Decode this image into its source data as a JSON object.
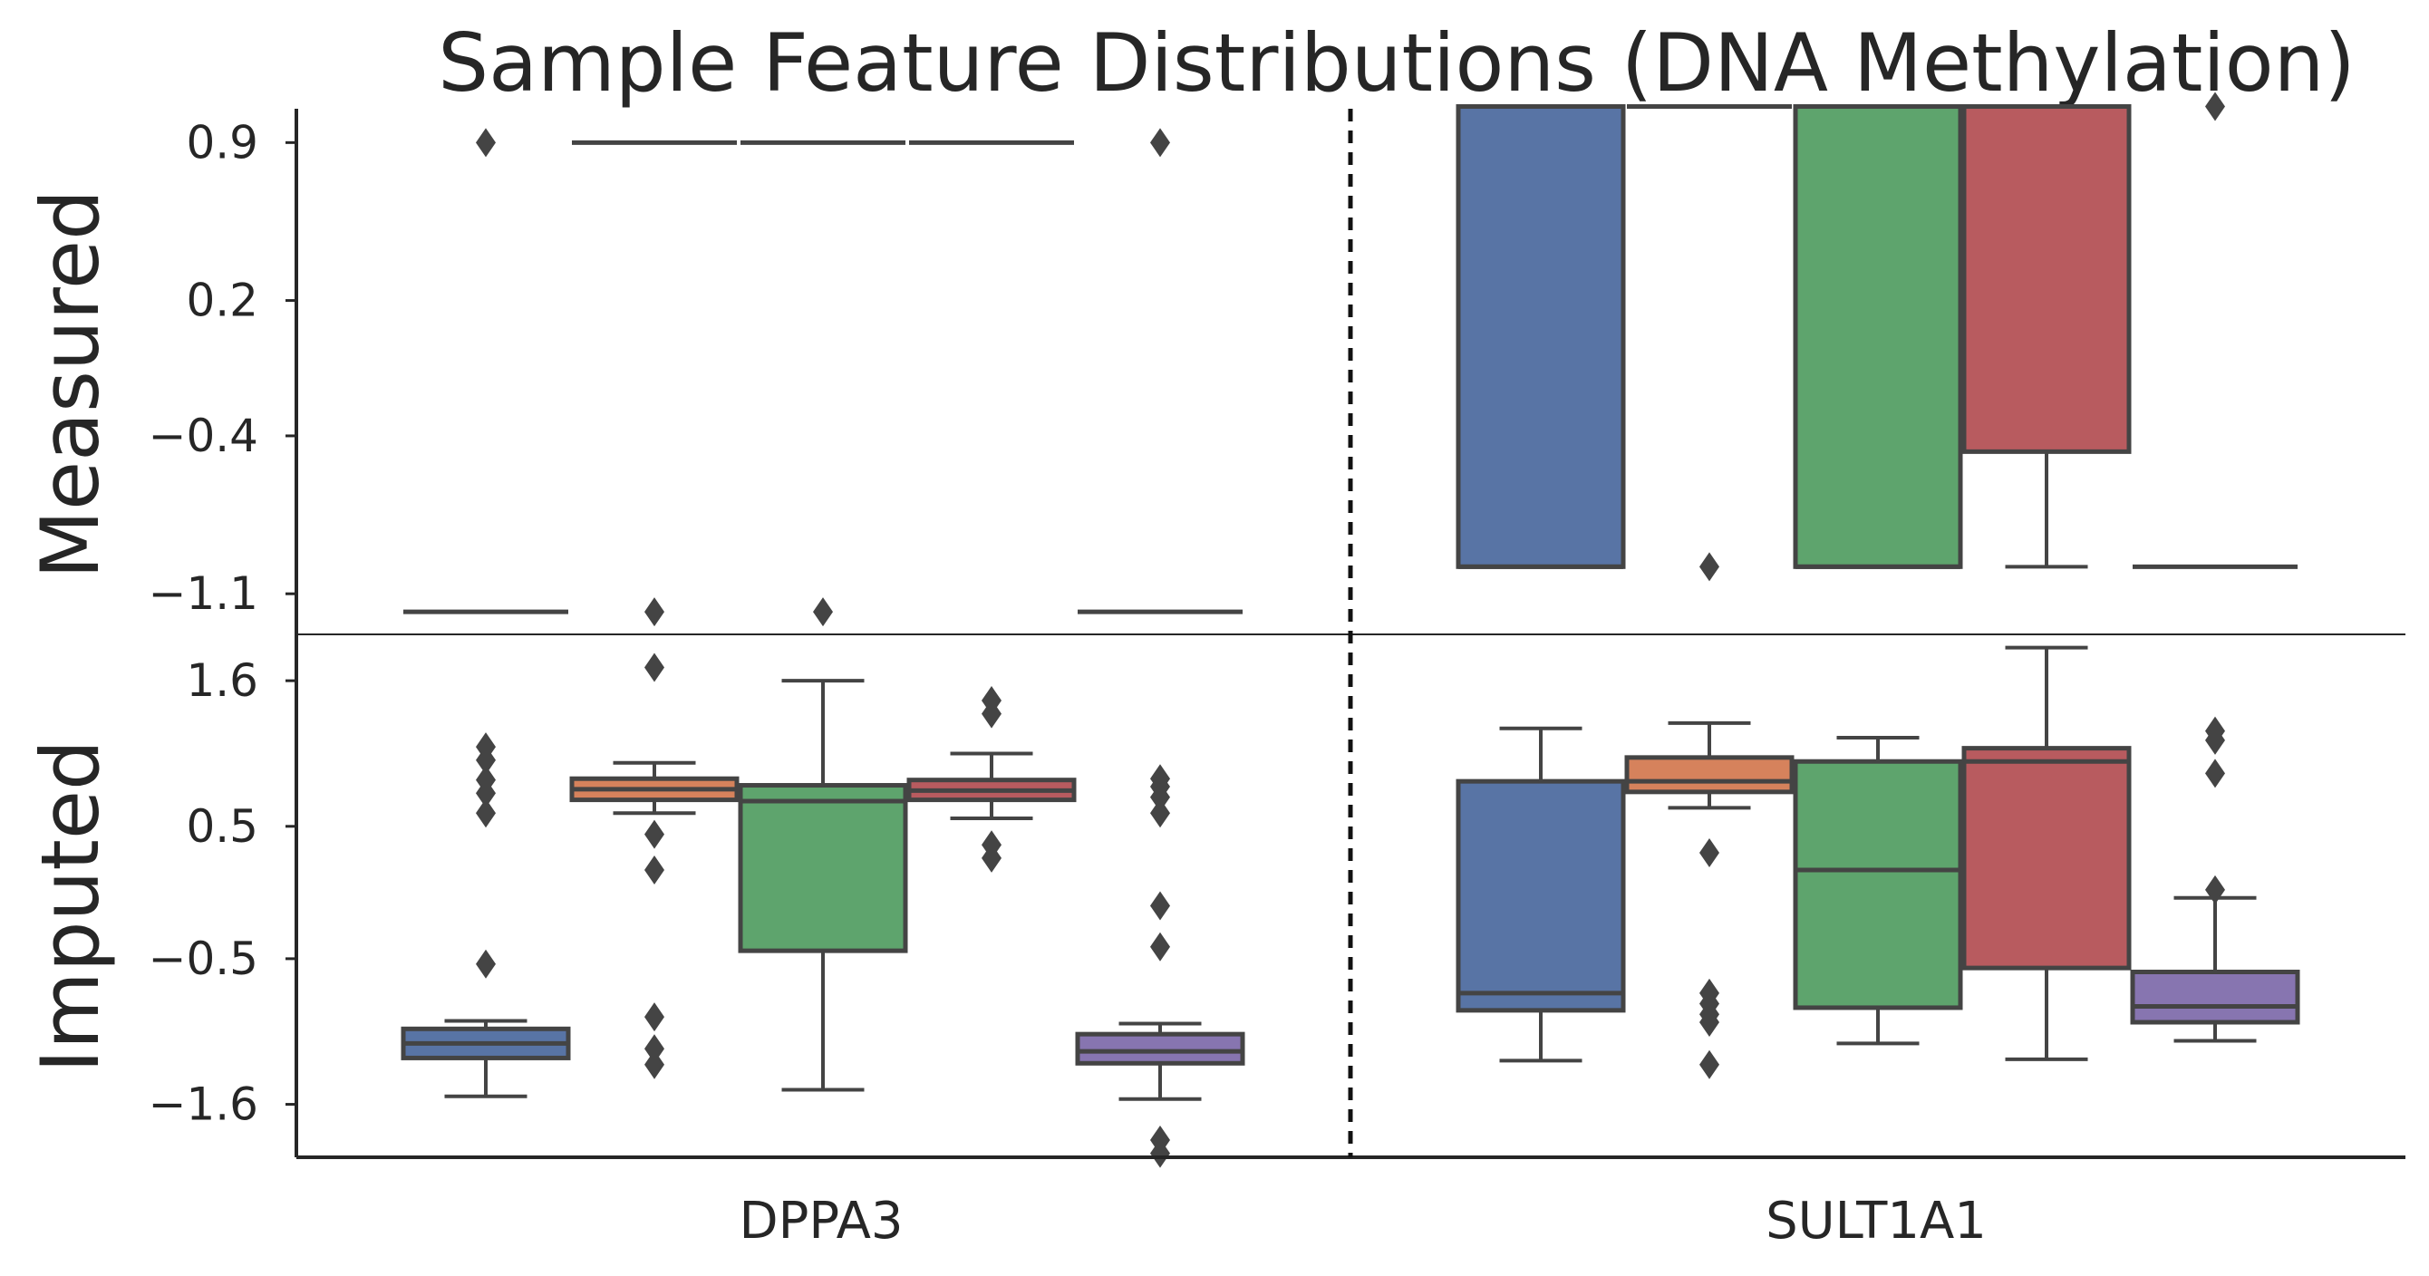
{
  "chart_data": {
    "type": "box",
    "title": "Sample Feature Distributions (DNA Methylation)",
    "categories": [
      "DPPA3",
      "SULT1A1"
    ],
    "group_colors": [
      "#5874a5",
      "#d6825c",
      "#5ea46d",
      "#b85b5f",
      "#8775b0"
    ],
    "panels": [
      {
        "ylabel": "Measured",
        "yrange": [
          -1.28,
          1.05
        ],
        "yticks": [
          {
            "value": 0.9,
            "label": "0.9"
          },
          {
            "value": 0.2,
            "label": "0.2"
          },
          {
            "value": -0.4,
            "label": "−0.4"
          },
          {
            "value": -1.1,
            "label": "−1.1"
          }
        ],
        "boxes": [
          {
            "category": "DPPA3",
            "group": 0,
            "q1": -1.18,
            "median": -1.18,
            "q3": -1.18,
            "whisker_low": -1.18,
            "whisker_high": -1.18,
            "outliers": [
              0.9
            ]
          },
          {
            "category": "DPPA3",
            "group": 1,
            "q1": 0.9,
            "median": 0.9,
            "q3": 0.9,
            "whisker_low": 0.9,
            "whisker_high": 0.9,
            "outliers": [
              -1.18
            ]
          },
          {
            "category": "DPPA3",
            "group": 2,
            "q1": 0.9,
            "median": 0.9,
            "q3": 0.9,
            "whisker_low": 0.9,
            "whisker_high": 0.9,
            "outliers": [
              -1.18
            ]
          },
          {
            "category": "DPPA3",
            "group": 3,
            "q1": 0.9,
            "median": 0.9,
            "q3": 0.9,
            "whisker_low": 0.9,
            "whisker_high": 0.9,
            "outliers": []
          },
          {
            "category": "DPPA3",
            "group": 4,
            "q1": -1.18,
            "median": -1.18,
            "q3": -1.18,
            "whisker_low": -1.18,
            "whisker_high": -1.18,
            "outliers": [
              0.9
            ]
          },
          {
            "category": "SULT1A1",
            "group": 0,
            "q1": -0.98,
            "median": -0.98,
            "q3": 1.06,
            "whisker_low": -0.98,
            "whisker_high": 1.06,
            "outliers": []
          },
          {
            "category": "SULT1A1",
            "group": 1,
            "q1": 1.06,
            "median": 1.06,
            "q3": 1.06,
            "whisker_low": 1.06,
            "whisker_high": 1.06,
            "outliers": [
              -0.98
            ]
          },
          {
            "category": "SULT1A1",
            "group": 2,
            "q1": -0.98,
            "median": -0.98,
            "q3": 1.06,
            "whisker_low": -0.98,
            "whisker_high": 1.06,
            "outliers": []
          },
          {
            "category": "SULT1A1",
            "group": 3,
            "q1": -0.47,
            "median": 1.06,
            "q3": 1.06,
            "whisker_low": -0.98,
            "whisker_high": 1.06,
            "outliers": []
          },
          {
            "category": "SULT1A1",
            "group": 4,
            "q1": -0.98,
            "median": -0.98,
            "q3": -0.98,
            "whisker_low": -0.98,
            "whisker_high": -0.98,
            "outliers": [
              1.06
            ]
          }
        ]
      },
      {
        "ylabel": "Imputed",
        "yrange": [
          -2.0,
          1.95
        ],
        "yticks": [
          {
            "value": 1.6,
            "label": "1.6"
          },
          {
            "value": 0.5,
            "label": "0.5"
          },
          {
            "value": -0.5,
            "label": "−0.5"
          },
          {
            "value": -1.6,
            "label": "−1.6"
          }
        ],
        "boxes": [
          {
            "category": "DPPA3",
            "group": 0,
            "q1": -1.25,
            "median": -1.14,
            "q3": -1.03,
            "whisker_low": -1.54,
            "whisker_high": -0.97,
            "outliers": [
              1.1,
              1.0,
              0.85,
              0.75,
              0.6,
              -0.54
            ]
          },
          {
            "category": "DPPA3",
            "group": 1,
            "q1": 0.7,
            "median": 0.78,
            "q3": 0.86,
            "whisker_low": 0.6,
            "whisker_high": 0.98,
            "outliers": [
              1.7,
              0.44,
              0.17,
              -0.94,
              -1.18,
              -1.3
            ]
          },
          {
            "category": "DPPA3",
            "group": 2,
            "q1": -0.44,
            "median": 0.69,
            "q3": 0.81,
            "whisker_low": -1.49,
            "whisker_high": 1.6
          },
          {
            "category": "DPPA3",
            "group": 3,
            "q1": 0.7,
            "median": 0.77,
            "q3": 0.85,
            "whisker_low": 0.56,
            "whisker_high": 1.05,
            "outliers": [
              1.45,
              1.35,
              0.36,
              0.26
            ]
          },
          {
            "category": "DPPA3",
            "group": 4,
            "q1": -1.29,
            "median": -1.2,
            "q3": -1.07,
            "whisker_low": -1.56,
            "whisker_high": -0.99,
            "outliers": [
              0.86,
              0.8,
              0.72,
              0.6,
              -0.1,
              -0.41,
              -1.87,
              -1.97
            ]
          },
          {
            "category": "SULT1A1",
            "group": 0,
            "q1": -0.89,
            "median": -0.76,
            "q3": 0.84,
            "whisker_low": -1.27,
            "whisker_high": 1.24
          },
          {
            "category": "SULT1A1",
            "group": 1,
            "q1": 0.76,
            "median": 0.84,
            "q3": 1.02,
            "whisker_low": 0.64,
            "whisker_high": 1.28,
            "outliers": [
              0.3,
              -0.76,
              -0.84,
              -0.92,
              -0.98,
              -1.3
            ]
          },
          {
            "category": "SULT1A1",
            "group": 2,
            "q1": -0.87,
            "median": 0.17,
            "q3": 0.99,
            "whisker_low": -1.14,
            "whisker_high": 1.17
          },
          {
            "category": "SULT1A1",
            "group": 3,
            "q1": -0.57,
            "median": 0.99,
            "q3": 1.09,
            "whisker_low": -1.26,
            "whisker_high": 1.85
          },
          {
            "category": "SULT1A1",
            "group": 4,
            "q1": -0.98,
            "median": -0.86,
            "q3": -0.6,
            "whisker_low": -1.12,
            "whisker_high": -0.04,
            "outliers": [
              1.22,
              1.15,
              0.9,
              0.02
            ]
          }
        ]
      }
    ]
  }
}
